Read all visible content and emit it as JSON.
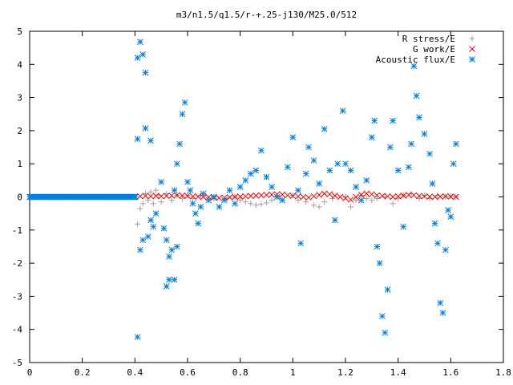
{
  "chart_data": {
    "type": "scatter",
    "title": "m3/n1.5/q1.5/r-+.25-j130/M25.0/512",
    "xlabel": "",
    "ylabel": "",
    "xlim": [
      0,
      1.8
    ],
    "ylim": [
      -5,
      5
    ],
    "xticks": [
      0,
      0.2,
      0.4,
      0.6,
      0.8,
      1,
      1.2,
      1.4,
      1.6,
      1.8
    ],
    "xtick_labels": [
      "0",
      "0.2",
      "0.4",
      "0.6",
      "0.8",
      "1",
      "1.2",
      "1.4",
      "1.6",
      "1.8"
    ],
    "yticks": [
      5,
      4,
      3,
      2,
      1,
      0,
      -1,
      -2,
      -3,
      -4,
      -5
    ],
    "ytick_labels": [
      "5",
      "4",
      "3",
      "2",
      "1",
      "0",
      "-1",
      "-2",
      "-3",
      "-4",
      "-5"
    ],
    "grid": false,
    "legend_position": "top-right",
    "series": [
      {
        "name": "R stress/E",
        "marker": "plus",
        "color": "#a0a0a0",
        "points": [
          [
            0.41,
            -0.82
          ],
          [
            0.42,
            -0.35
          ],
          [
            0.43,
            -0.2
          ],
          [
            0.44,
            0.1
          ],
          [
            0.45,
            -0.1
          ],
          [
            0.46,
            0.15
          ],
          [
            0.47,
            -0.2
          ],
          [
            0.48,
            0.2
          ],
          [
            0.49,
            0.05
          ],
          [
            0.5,
            -0.15
          ],
          [
            0.52,
            0.1
          ],
          [
            0.54,
            -0.1
          ],
          [
            0.56,
            0.05
          ],
          [
            0.58,
            -0.05
          ],
          [
            0.6,
            0.05
          ],
          [
            0.62,
            -0.05
          ],
          [
            0.65,
            0.05
          ],
          [
            0.7,
            -0.05
          ],
          [
            0.75,
            -0.05
          ],
          [
            0.78,
            0.0
          ],
          [
            0.8,
            -0.1
          ],
          [
            0.82,
            -0.15
          ],
          [
            0.84,
            -0.2
          ],
          [
            0.86,
            -0.25
          ],
          [
            0.88,
            -0.22
          ],
          [
            0.9,
            -0.18
          ],
          [
            0.92,
            -0.1
          ],
          [
            0.95,
            -0.05
          ],
          [
            1.0,
            0.05
          ],
          [
            1.02,
            -0.1
          ],
          [
            1.05,
            -0.15
          ],
          [
            1.08,
            -0.25
          ],
          [
            1.1,
            -0.3
          ],
          [
            1.12,
            -0.15
          ],
          [
            1.15,
            -0.05
          ],
          [
            1.2,
            0.0
          ],
          [
            1.22,
            -0.3
          ],
          [
            1.24,
            -0.1
          ],
          [
            1.26,
            0.05
          ],
          [
            1.28,
            -0.05
          ],
          [
            1.3,
            -0.1
          ],
          [
            1.32,
            -0.05
          ],
          [
            1.35,
            0.0
          ],
          [
            1.38,
            -0.2
          ],
          [
            1.4,
            -0.05
          ],
          [
            1.42,
            0.05
          ],
          [
            1.45,
            0.1
          ],
          [
            1.48,
            -0.05
          ],
          [
            1.5,
            0.05
          ],
          [
            1.52,
            -0.05
          ],
          [
            1.55,
            0.05
          ],
          [
            1.58,
            0.0
          ],
          [
            1.6,
            0.02
          ],
          [
            1.62,
            0.0
          ]
        ]
      },
      {
        "name": "G work/E",
        "marker": "cross",
        "color": "#ff0000",
        "points": [
          [
            0.42,
            0.02
          ],
          [
            0.44,
            0.03
          ],
          [
            0.46,
            0.02
          ],
          [
            0.48,
            0.03
          ],
          [
            0.5,
            0.02
          ],
          [
            0.52,
            0.03
          ],
          [
            0.54,
            0.04
          ],
          [
            0.56,
            0.05
          ],
          [
            0.58,
            0.04
          ],
          [
            0.6,
            0.03
          ],
          [
            0.62,
            0.02
          ],
          [
            0.64,
            0.01
          ],
          [
            0.66,
            0.0
          ],
          [
            0.68,
            -0.01
          ],
          [
            0.7,
            -0.02
          ],
          [
            0.72,
            -0.03
          ],
          [
            0.74,
            -0.02
          ],
          [
            0.76,
            -0.01
          ],
          [
            0.78,
            0.0
          ],
          [
            0.8,
            0.01
          ],
          [
            0.82,
            0.02
          ],
          [
            0.84,
            0.03
          ],
          [
            0.86,
            0.04
          ],
          [
            0.88,
            0.05
          ],
          [
            0.9,
            0.06
          ],
          [
            0.92,
            0.07
          ],
          [
            0.94,
            0.08
          ],
          [
            0.96,
            0.07
          ],
          [
            0.98,
            0.05
          ],
          [
            1.0,
            0.03
          ],
          [
            1.02,
            0.02
          ],
          [
            1.04,
            0.0
          ],
          [
            1.06,
            -0.02
          ],
          [
            1.08,
            0.02
          ],
          [
            1.1,
            0.06
          ],
          [
            1.12,
            0.1
          ],
          [
            1.14,
            0.08
          ],
          [
            1.16,
            0.04
          ],
          [
            1.18,
            0.0
          ],
          [
            1.2,
            -0.04
          ],
          [
            1.22,
            -0.08
          ],
          [
            1.24,
            0.0
          ],
          [
            1.26,
            0.06
          ],
          [
            1.28,
            0.1
          ],
          [
            1.3,
            0.08
          ],
          [
            1.32,
            0.05
          ],
          [
            1.34,
            0.03
          ],
          [
            1.36,
            0.02
          ],
          [
            1.38,
            0.0
          ],
          [
            1.4,
            0.02
          ],
          [
            1.42,
            0.04
          ],
          [
            1.44,
            0.06
          ],
          [
            1.46,
            0.05
          ],
          [
            1.48,
            0.03
          ],
          [
            1.5,
            0.02
          ],
          [
            1.52,
            0.01
          ],
          [
            1.54,
            0.0
          ],
          [
            1.56,
            0.01
          ],
          [
            1.58,
            0.02
          ],
          [
            1.6,
            0.01
          ],
          [
            1.62,
            0.0
          ]
        ]
      },
      {
        "name": "Acoustic flux/E",
        "marker": "star",
        "color": "#0080e0",
        "points": [
          [
            0.41,
            4.2
          ],
          [
            0.42,
            4.68
          ],
          [
            0.43,
            4.3
          ],
          [
            0.44,
            3.75
          ],
          [
            0.41,
            1.75
          ],
          [
            0.44,
            2.07
          ],
          [
            0.46,
            1.7
          ],
          [
            0.41,
            -4.23
          ],
          [
            0.42,
            -1.6
          ],
          [
            0.43,
            -1.3
          ],
          [
            0.45,
            -1.2
          ],
          [
            0.46,
            -0.7
          ],
          [
            0.47,
            -0.9
          ],
          [
            0.48,
            -0.5
          ],
          [
            0.5,
            0.45
          ],
          [
            0.51,
            -0.95
          ],
          [
            0.52,
            -1.3
          ],
          [
            0.53,
            -1.8
          ],
          [
            0.52,
            -2.7
          ],
          [
            0.53,
            -2.5
          ],
          [
            0.54,
            -1.6
          ],
          [
            0.55,
            -2.5
          ],
          [
            0.56,
            -1.5
          ],
          [
            0.55,
            0.2
          ],
          [
            0.56,
            1.0
          ],
          [
            0.57,
            1.6
          ],
          [
            0.58,
            2.5
          ],
          [
            0.59,
            2.85
          ],
          [
            0.6,
            0.45
          ],
          [
            0.61,
            0.2
          ],
          [
            0.62,
            -0.2
          ],
          [
            0.63,
            -0.5
          ],
          [
            0.64,
            -0.8
          ],
          [
            0.65,
            -0.3
          ],
          [
            0.66,
            0.1
          ],
          [
            0.68,
            -0.1
          ],
          [
            0.7,
            0.0
          ],
          [
            0.72,
            -0.3
          ],
          [
            0.74,
            -0.1
          ],
          [
            0.76,
            0.2
          ],
          [
            0.78,
            -0.2
          ],
          [
            0.8,
            0.3
          ],
          [
            0.82,
            0.5
          ],
          [
            0.84,
            0.7
          ],
          [
            0.86,
            0.8
          ],
          [
            0.88,
            1.4
          ],
          [
            0.9,
            0.6
          ],
          [
            0.92,
            0.3
          ],
          [
            0.94,
            0.0
          ],
          [
            0.96,
            -0.1
          ],
          [
            0.98,
            0.9
          ],
          [
            1.0,
            1.8
          ],
          [
            1.02,
            0.2
          ],
          [
            1.03,
            -1.4
          ],
          [
            1.05,
            0.7
          ],
          [
            1.06,
            1.5
          ],
          [
            1.08,
            1.1
          ],
          [
            1.1,
            0.4
          ],
          [
            1.12,
            2.05
          ],
          [
            1.14,
            0.8
          ],
          [
            1.16,
            -0.7
          ],
          [
            1.17,
            1.0
          ],
          [
            1.19,
            2.6
          ],
          [
            1.2,
            1.0
          ],
          [
            1.22,
            0.8
          ],
          [
            1.24,
            0.3
          ],
          [
            1.26,
            -0.1
          ],
          [
            1.28,
            0.5
          ],
          [
            1.3,
            1.8
          ],
          [
            1.31,
            2.3
          ],
          [
            1.32,
            -1.5
          ],
          [
            1.33,
            -2.0
          ],
          [
            1.34,
            -3.6
          ],
          [
            1.35,
            -4.1
          ],
          [
            1.36,
            -2.8
          ],
          [
            1.37,
            1.5
          ],
          [
            1.38,
            2.3
          ],
          [
            1.4,
            0.8
          ],
          [
            1.42,
            -0.9
          ],
          [
            1.44,
            0.9
          ],
          [
            1.45,
            1.6
          ],
          [
            1.46,
            3.95
          ],
          [
            1.47,
            3.05
          ],
          [
            1.48,
            2.4
          ],
          [
            1.5,
            1.9
          ],
          [
            1.52,
            1.3
          ],
          [
            1.53,
            0.4
          ],
          [
            1.54,
            -0.8
          ],
          [
            1.55,
            -1.4
          ],
          [
            1.56,
            -3.2
          ],
          [
            1.57,
            -3.5
          ],
          [
            1.58,
            -1.6
          ],
          [
            1.59,
            -0.4
          ],
          [
            1.6,
            -0.6
          ],
          [
            1.61,
            1.0
          ],
          [
            1.62,
            1.6
          ]
        ]
      }
    ]
  }
}
